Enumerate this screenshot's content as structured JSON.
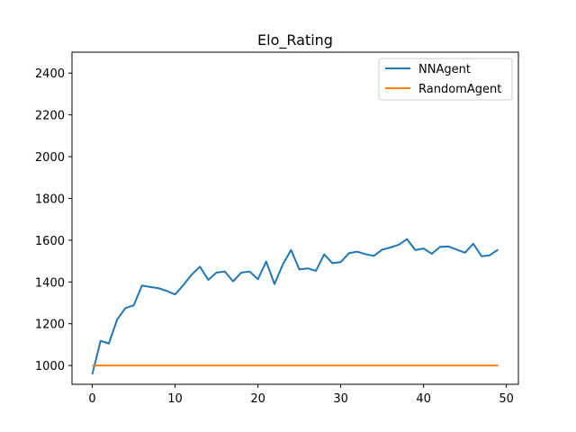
{
  "chart_data": {
    "type": "line",
    "title": "Elo_Rating",
    "xlabel": "",
    "ylabel": "",
    "xlim": [
      -2.45,
      51.45
    ],
    "ylim": [
      910,
      2500
    ],
    "xticks": [
      0,
      10,
      20,
      30,
      40,
      50
    ],
    "yticks": [
      1000,
      1200,
      1400,
      1600,
      1800,
      2000,
      2200,
      2400
    ],
    "grid": false,
    "legend_position": "top-right",
    "series": [
      {
        "name": "NNAgent",
        "color": "#1f77b4",
        "x": [
          0,
          1,
          2,
          3,
          4,
          5,
          6,
          7,
          8,
          9,
          10,
          11,
          12,
          13,
          14,
          15,
          16,
          17,
          18,
          19,
          20,
          21,
          22,
          23,
          24,
          25,
          26,
          27,
          28,
          29,
          30,
          31,
          32,
          33,
          34,
          35,
          36,
          37,
          38,
          39,
          40,
          41,
          42,
          43,
          44,
          45,
          46,
          47,
          48,
          49
        ],
        "values": [
          958,
          1118,
          1105,
          1220,
          1275,
          1288,
          1383,
          1376,
          1370,
          1357,
          1340,
          1385,
          1435,
          1473,
          1410,
          1445,
          1450,
          1403,
          1445,
          1450,
          1413,
          1498,
          1390,
          1483,
          1553,
          1460,
          1465,
          1453,
          1532,
          1490,
          1495,
          1538,
          1545,
          1533,
          1525,
          1555,
          1565,
          1578,
          1605,
          1553,
          1560,
          1535,
          1568,
          1570,
          1555,
          1540,
          1583,
          1523,
          1528,
          1555
        ]
      },
      {
        "name": "RandomAgent",
        "color": "#ff7f0e",
        "x": [
          0,
          49
        ],
        "values": [
          1000,
          1000
        ]
      }
    ]
  }
}
